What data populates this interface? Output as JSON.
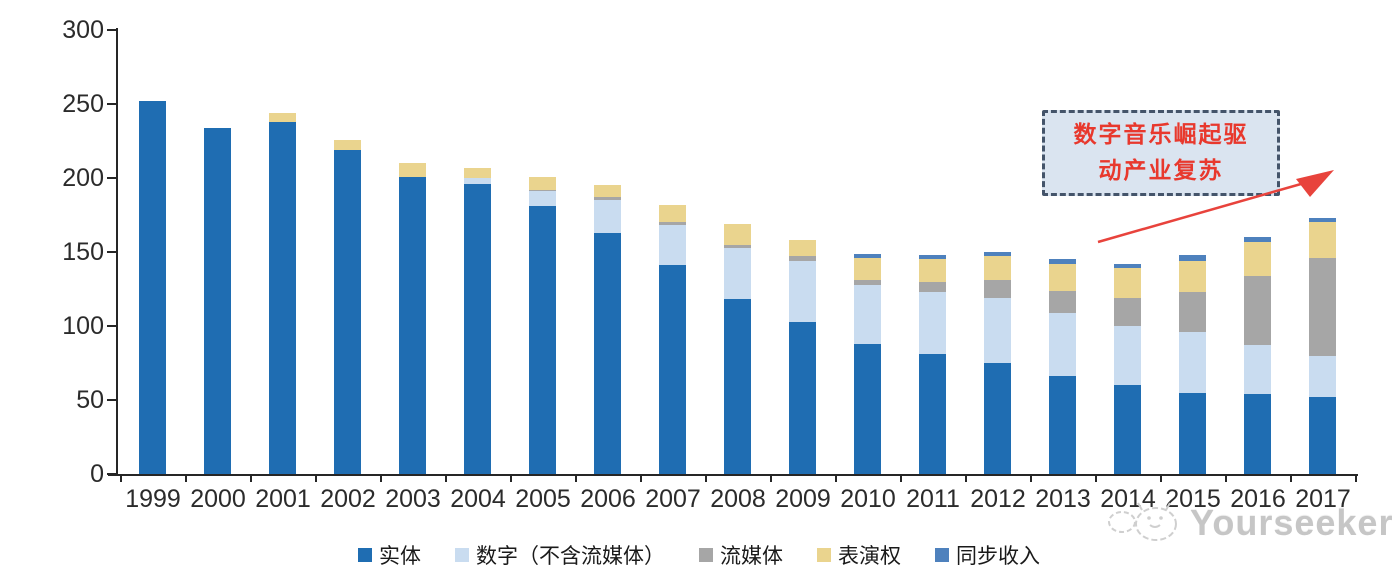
{
  "chart_data": {
    "type": "bar",
    "stacked": true,
    "title": "",
    "xlabel": "",
    "ylabel": "",
    "ylim": [
      0,
      300
    ],
    "yticks": [
      0,
      50,
      100,
      150,
      200,
      250,
      300
    ],
    "grid": false,
    "legend_position": "bottom",
    "categories": [
      "1999",
      "2000",
      "2001",
      "2002",
      "2003",
      "2004",
      "2005",
      "2006",
      "2007",
      "2008",
      "2009",
      "2010",
      "2011",
      "2012",
      "2013",
      "2014",
      "2015",
      "2016",
      "2017"
    ],
    "series": [
      {
        "name": "实体",
        "color": "#1F6DB2",
        "values": [
          252,
          234,
          238,
          219,
          201,
          196,
          181,
          163,
          141,
          118,
          103,
          88,
          81,
          75,
          66,
          60,
          55,
          54,
          52
        ]
      },
      {
        "name": "数字（不含流媒体）",
        "color": "#C9DCF0",
        "values": [
          0,
          0,
          0,
          0,
          0,
          4,
          10,
          22,
          27,
          35,
          41,
          40,
          42,
          44,
          43,
          40,
          41,
          33,
          28
        ]
      },
      {
        "name": "流媒体",
        "color": "#A6A6A6",
        "values": [
          0,
          0,
          0,
          0,
          0,
          0,
          1,
          2,
          2,
          2,
          3,
          3,
          7,
          12,
          15,
          19,
          27,
          47,
          66
        ]
      },
      {
        "name": "表演权",
        "color": "#EAD48E",
        "values": [
          0,
          0,
          6,
          7,
          9,
          7,
          9,
          8,
          12,
          14,
          11,
          15,
          15,
          16,
          18,
          20,
          21,
          23,
          24
        ]
      },
      {
        "name": "同步收入",
        "color": "#4E81BD",
        "values": [
          0,
          0,
          0,
          0,
          0,
          0,
          0,
          0,
          0,
          0,
          0,
          3,
          3,
          3,
          3,
          3,
          4,
          3,
          3
        ]
      }
    ]
  },
  "annotation": {
    "line1": "数字音乐崛起驱",
    "line2": "动产业复苏",
    "text_color": "#E8382D",
    "border_color": "#44546A",
    "fill_color": "#DAE4F0",
    "arrow_color": "#E8433C"
  },
  "watermark": {
    "brand": "Yourseeker",
    "icon": "face-logo",
    "color": "#c6c6c6"
  },
  "axis": {
    "color": "#262626"
  }
}
